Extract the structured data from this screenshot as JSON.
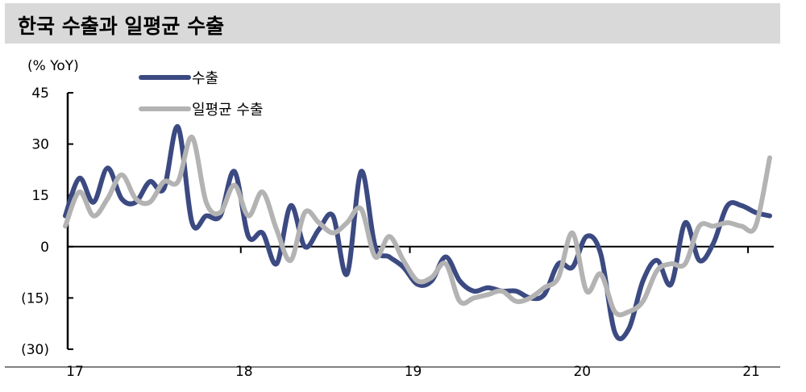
{
  "title": "한국 수출과 일평균 수출",
  "chart_data": {
    "type": "line",
    "ylabel": "(% YoY)",
    "ylim": [
      -30,
      45
    ],
    "yticks": [
      45,
      30,
      15,
      0,
      -15,
      -30
    ],
    "ytick_labels": [
      "45",
      "30",
      "15",
      "0",
      "(15)",
      "(30)"
    ],
    "xlim": [
      0,
      50
    ],
    "xticks": [
      0,
      12,
      24,
      36,
      48
    ],
    "xtick_labels": [
      "17",
      "18",
      "19",
      "20",
      "21"
    ],
    "grid": false,
    "legend": "top-left",
    "series": [
      {
        "name": "수출",
        "color": "#3c4a82",
        "values": [
          9,
          20,
          13,
          23,
          14,
          13,
          19,
          17,
          35,
          7,
          9,
          9,
          22,
          3,
          4,
          -5,
          12,
          0,
          5,
          9,
          -8,
          22,
          0,
          -3,
          -6,
          -11,
          -10,
          -3,
          -10,
          -13,
          -12,
          -13,
          -13,
          -15,
          -14,
          -5,
          -6,
          3,
          -2,
          -25,
          -24,
          -10,
          -4,
          -11,
          7,
          -4,
          1,
          12,
          12,
          10,
          9
        ]
      },
      {
        "name": "일평균 수출",
        "color": "#b3b3b3",
        "values": [
          6,
          16,
          9,
          14,
          21,
          14,
          13,
          19,
          19,
          32,
          13,
          10,
          18,
          9,
          16,
          5,
          -4,
          10,
          7,
          4,
          7,
          11,
          -3,
          3,
          -4,
          -10,
          -9,
          -5,
          -16,
          -15,
          -14,
          -13,
          -16,
          -15,
          -12,
          -9,
          4,
          -13,
          -8,
          -19,
          -19,
          -16,
          -7,
          -5,
          -5,
          6,
          6,
          7,
          6,
          6,
          26
        ]
      }
    ]
  }
}
